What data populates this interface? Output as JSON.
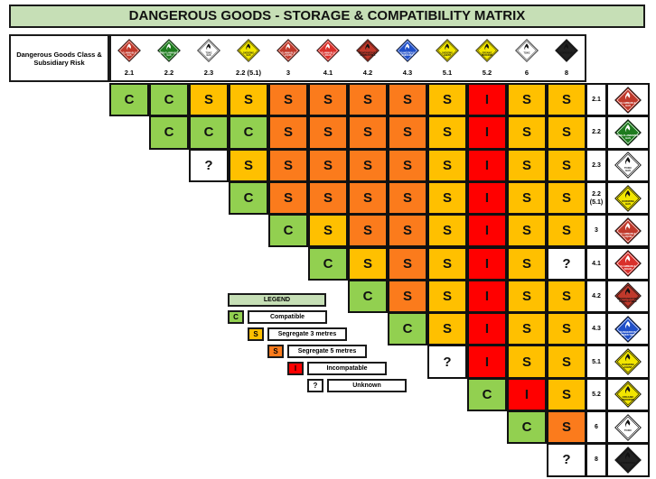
{
  "title": "DANGEROUS GOODS - STORAGE & COMPATIBILITY MATRIX",
  "row_header_label": "Dangerous Goods Class & Subsidiary Risk",
  "colors": {
    "C": "#92d050",
    "S3": "#ffc000",
    "S5": "#fb7b1c",
    "I": "#ff0000",
    "U": "#ffffff",
    "title_bg": "#c6dfb6"
  },
  "classes": [
    {
      "label": "2.1",
      "row_label": "2.1",
      "icon": "flammable-gas-icon",
      "color": "#c0392b",
      "text": "FLAMMABLE GAS",
      "dark": true
    },
    {
      "label": "2.2",
      "row_label": "2.2",
      "icon": "non-flammable-gas-icon",
      "color": "#1e7b1e",
      "text": "NON-FLAMMABLE GAS",
      "dark": true
    },
    {
      "label": "2.3",
      "row_label": "2.3",
      "icon": "toxic-gas-icon",
      "color": "#ffffff",
      "text": "TOXIC GAS",
      "dark": false
    },
    {
      "label": "2.2 (5.1)",
      "row_label": "2.2 (5.1)",
      "icon": "oxidizing-gas-icon",
      "color": "#f2e600",
      "text": "OXIDIZING GAS",
      "dark": false
    },
    {
      "label": "3",
      "row_label": "3",
      "icon": "flammable-liquid-icon",
      "color": "#c0392b",
      "text": "FLAMMABLE LIQUID",
      "dark": true
    },
    {
      "label": "4.1",
      "row_label": "4.1",
      "icon": "flammable-solid-icon",
      "color": "#d9302b",
      "text": "FLAMMABLE SOLID",
      "dark": true
    },
    {
      "label": "4.2",
      "row_label": "4.2",
      "icon": "spontaneously-combustible-icon",
      "color": "#c0392b",
      "text": "SPONTANEOUSLY COMBUSTIBLE",
      "dark": false
    },
    {
      "label": "4.3",
      "row_label": "4.3",
      "icon": "dangerous-when-wet-icon",
      "color": "#1f4fc8",
      "text": "DANGEROUS WHEN WET",
      "dark": true
    },
    {
      "label": "5.1",
      "row_label": "5.1",
      "icon": "oxidizing-agent-icon",
      "color": "#f2e600",
      "text": "OXIDIZING AGENT",
      "dark": false
    },
    {
      "label": "5.2",
      "row_label": "5.2",
      "icon": "organic-peroxide-icon",
      "color": "#f2e600",
      "text": "ORGANIC PEROXIDE",
      "dark": false
    },
    {
      "label": "6",
      "row_label": "6",
      "icon": "toxic-icon",
      "color": "#ffffff",
      "text": "TOXIC",
      "dark": false
    },
    {
      "label": "8",
      "row_label": "8",
      "icon": "corrosive-icon",
      "color": "#222222",
      "text": "CORROSIVE",
      "dark": false
    }
  ],
  "matrix": [
    [
      {
        "t": "C",
        "k": "C"
      },
      {
        "t": "C",
        "k": "C"
      },
      {
        "t": "S",
        "k": "S3"
      },
      {
        "t": "S",
        "k": "S3"
      },
      {
        "t": "S",
        "k": "S5"
      },
      {
        "t": "S",
        "k": "S5"
      },
      {
        "t": "S",
        "k": "S5"
      },
      {
        "t": "S",
        "k": "S5"
      },
      {
        "t": "S",
        "k": "S3"
      },
      {
        "t": "I",
        "k": "I"
      },
      {
        "t": "S",
        "k": "S3"
      },
      {
        "t": "S",
        "k": "S3"
      }
    ],
    [
      null,
      {
        "t": "C",
        "k": "C"
      },
      {
        "t": "C",
        "k": "C"
      },
      {
        "t": "C",
        "k": "C"
      },
      {
        "t": "S",
        "k": "S5"
      },
      {
        "t": "S",
        "k": "S5"
      },
      {
        "t": "S",
        "k": "S5"
      },
      {
        "t": "S",
        "k": "S5"
      },
      {
        "t": "S",
        "k": "S3"
      },
      {
        "t": "I",
        "k": "I"
      },
      {
        "t": "S",
        "k": "S3"
      },
      {
        "t": "S",
        "k": "S3"
      }
    ],
    [
      null,
      null,
      {
        "t": "?",
        "k": "U"
      },
      {
        "t": "S",
        "k": "S3"
      },
      {
        "t": "S",
        "k": "S5"
      },
      {
        "t": "S",
        "k": "S5"
      },
      {
        "t": "S",
        "k": "S5"
      },
      {
        "t": "S",
        "k": "S5"
      },
      {
        "t": "S",
        "k": "S3"
      },
      {
        "t": "I",
        "k": "I"
      },
      {
        "t": "S",
        "k": "S3"
      },
      {
        "t": "S",
        "k": "S3"
      }
    ],
    [
      null,
      null,
      null,
      {
        "t": "C",
        "k": "C"
      },
      {
        "t": "S",
        "k": "S5"
      },
      {
        "t": "S",
        "k": "S5"
      },
      {
        "t": "S",
        "k": "S5"
      },
      {
        "t": "S",
        "k": "S5"
      },
      {
        "t": "S",
        "k": "S3"
      },
      {
        "t": "I",
        "k": "I"
      },
      {
        "t": "S",
        "k": "S3"
      },
      {
        "t": "S",
        "k": "S3"
      }
    ],
    [
      null,
      null,
      null,
      null,
      {
        "t": "C",
        "k": "C"
      },
      {
        "t": "S",
        "k": "S3"
      },
      {
        "t": "S",
        "k": "S5"
      },
      {
        "t": "S",
        "k": "S5"
      },
      {
        "t": "S",
        "k": "S3"
      },
      {
        "t": "I",
        "k": "I"
      },
      {
        "t": "S",
        "k": "S3"
      },
      {
        "t": "S",
        "k": "S3"
      }
    ],
    [
      null,
      null,
      null,
      null,
      null,
      {
        "t": "C",
        "k": "C"
      },
      {
        "t": "S",
        "k": "S3"
      },
      {
        "t": "S",
        "k": "S5"
      },
      {
        "t": "S",
        "k": "S3"
      },
      {
        "t": "I",
        "k": "I"
      },
      {
        "t": "S",
        "k": "S3"
      },
      {
        "t": "?",
        "k": "U"
      }
    ],
    [
      null,
      null,
      null,
      null,
      null,
      null,
      {
        "t": "C",
        "k": "C"
      },
      {
        "t": "S",
        "k": "S5"
      },
      {
        "t": "S",
        "k": "S3"
      },
      {
        "t": "I",
        "k": "I"
      },
      {
        "t": "S",
        "k": "S3"
      },
      {
        "t": "S",
        "k": "S3"
      }
    ],
    [
      null,
      null,
      null,
      null,
      null,
      null,
      null,
      {
        "t": "C",
        "k": "C"
      },
      {
        "t": "S",
        "k": "S3"
      },
      {
        "t": "I",
        "k": "I"
      },
      {
        "t": "S",
        "k": "S3"
      },
      {
        "t": "S",
        "k": "S3"
      }
    ],
    [
      null,
      null,
      null,
      null,
      null,
      null,
      null,
      null,
      {
        "t": "?",
        "k": "U"
      },
      {
        "t": "I",
        "k": "I"
      },
      {
        "t": "S",
        "k": "S3"
      },
      {
        "t": "S",
        "k": "S3"
      }
    ],
    [
      null,
      null,
      null,
      null,
      null,
      null,
      null,
      null,
      null,
      {
        "t": "C",
        "k": "C"
      },
      {
        "t": "I",
        "k": "I"
      },
      {
        "t": "S",
        "k": "S3"
      }
    ],
    [
      null,
      null,
      null,
      null,
      null,
      null,
      null,
      null,
      null,
      null,
      {
        "t": "C",
        "k": "C"
      },
      {
        "t": "S",
        "k": "S5"
      }
    ],
    [
      null,
      null,
      null,
      null,
      null,
      null,
      null,
      null,
      null,
      null,
      null,
      {
        "t": "?",
        "k": "U"
      }
    ]
  ],
  "legend": {
    "title": "LEGEND",
    "items": [
      {
        "symbol": "C",
        "k": "C",
        "label": "Compatible"
      },
      {
        "symbol": "S",
        "k": "S3",
        "label": "Segregate 3 metres"
      },
      {
        "symbol": "S",
        "k": "S5",
        "label": "Segregate 5 metres"
      },
      {
        "symbol": "I",
        "k": "I",
        "label": "Incompatable"
      },
      {
        "symbol": "?",
        "k": "U",
        "label": "Unknown"
      }
    ]
  }
}
